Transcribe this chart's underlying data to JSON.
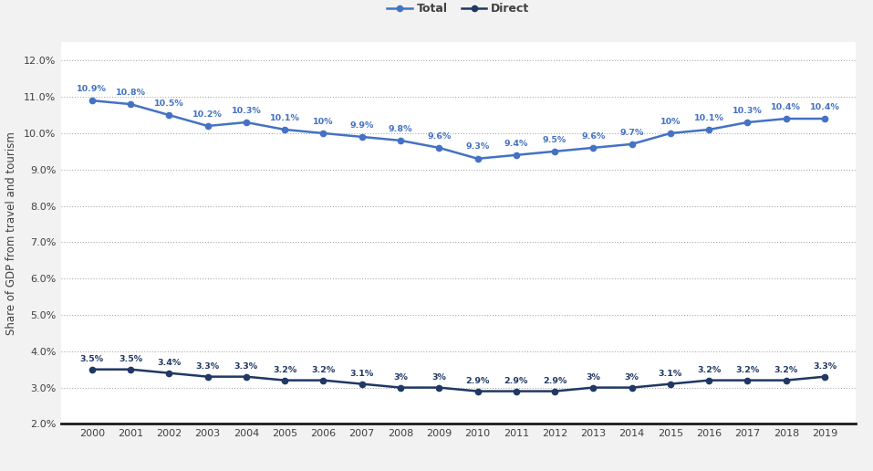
{
  "years": [
    2000,
    2001,
    2002,
    2003,
    2004,
    2005,
    2006,
    2007,
    2008,
    2009,
    2010,
    2011,
    2012,
    2013,
    2014,
    2015,
    2016,
    2017,
    2018,
    2019
  ],
  "total": [
    10.9,
    10.8,
    10.5,
    10.2,
    10.3,
    10.1,
    10.0,
    9.9,
    9.8,
    9.6,
    9.3,
    9.4,
    9.5,
    9.6,
    9.7,
    10.0,
    10.1,
    10.3,
    10.4,
    10.4
  ],
  "direct": [
    3.5,
    3.5,
    3.4,
    3.3,
    3.3,
    3.2,
    3.2,
    3.1,
    3.0,
    3.0,
    2.9,
    2.9,
    2.9,
    3.0,
    3.0,
    3.1,
    3.2,
    3.2,
    3.2,
    3.3
  ],
  "total_labels": [
    "10.9%",
    "10.8%",
    "10.5%",
    "10.2%",
    "10.3%",
    "10.1%",
    "10%",
    "9.9%",
    "9.8%",
    "9.6%",
    "9.3%",
    "9.4%",
    "9.5%",
    "9.6%",
    "9.7%",
    "10%",
    "10.1%",
    "10.3%",
    "10.4%",
    "10.4%"
  ],
  "direct_labels": [
    "3.5%",
    "3.5%",
    "3.4%",
    "3.3%",
    "3.3%",
    "3.2%",
    "3.2%",
    "3.1%",
    "3%",
    "3%",
    "2.9%",
    "2.9%",
    "2.9%",
    "3%",
    "3%",
    "3.1%",
    "3.2%",
    "3.2%",
    "3.2%",
    "3.3%"
  ],
  "total_color": "#4472C4",
  "direct_color": "#1F3864",
  "ylabel": "Share of GDP from travel and tourism",
  "ylim": [
    2.0,
    12.5
  ],
  "yticks": [
    2.0,
    3.0,
    4.0,
    5.0,
    6.0,
    7.0,
    8.0,
    9.0,
    10.0,
    11.0,
    12.0
  ],
  "ytick_labels": [
    "2.0%",
    "3.0%",
    "4.0%",
    "5.0%",
    "6.0%",
    "7.0%",
    "8.0%",
    "9.0%",
    "10.0%",
    "11.0%",
    "12.0%"
  ],
  "legend_labels": [
    "Total",
    "Direct"
  ],
  "fig_color": "#f2f2f2",
  "plot_color": "#ffffff",
  "grid_color": "#999999",
  "text_color": "#404040",
  "bottom_spine_color": "#1a1a1a"
}
